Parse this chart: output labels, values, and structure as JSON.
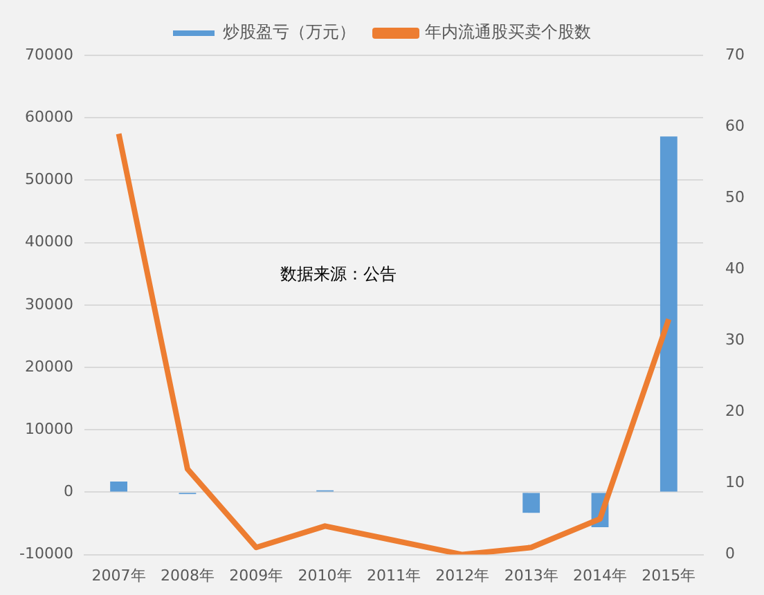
{
  "chart_data": {
    "type": "bar",
    "categories": [
      "2007年",
      "2008年",
      "2009年",
      "2010年",
      "2011年",
      "2012年",
      "2013年",
      "2014年",
      "2015年"
    ],
    "series": [
      {
        "name": "炒股盈亏（万元）",
        "color": "#5b9bd5",
        "values": [
          1700,
          -300,
          0,
          300,
          0,
          0,
          -3300,
          -5600,
          57000
        ]
      },
      {
        "name": "年内流通股买卖个股数",
        "type": "line",
        "axis": "y2",
        "color": "#ed7d31",
        "values": [
          59,
          12,
          1,
          4,
          2,
          0,
          1,
          5,
          33
        ]
      }
    ],
    "ylim": [
      -10000,
      70000
    ],
    "yticks": [
      -10000,
      0,
      10000,
      20000,
      30000,
      40000,
      50000,
      60000,
      70000
    ],
    "y2lim": [
      0,
      70
    ],
    "y2ticks": [
      0,
      10,
      20,
      30,
      40,
      50,
      60,
      70
    ],
    "grid": "y",
    "legend": "top",
    "marker": "none",
    "annotations": [
      "数据来源：公告"
    ]
  }
}
